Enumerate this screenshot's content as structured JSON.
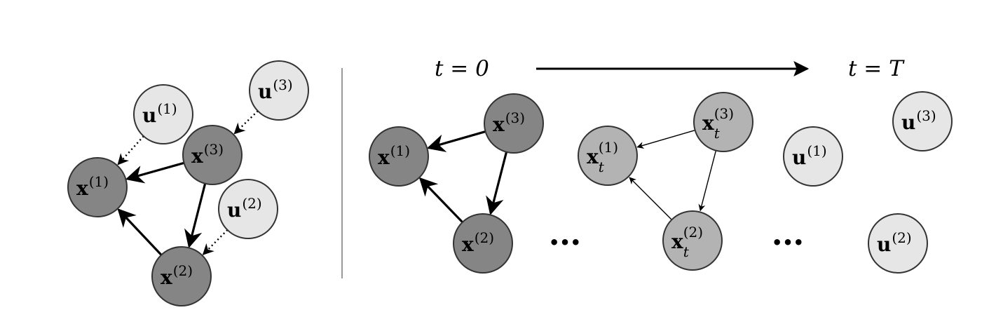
{
  "colors": {
    "background": "#ffffff",
    "observed_fill": "#858585",
    "latent_fill": "#b3b3b3",
    "input_fill": "#e6e6e6",
    "stroke": "#333333",
    "edge": "#000000",
    "divider": "#999999"
  },
  "header": {
    "text": ""
  },
  "left_panel": {
    "nodes": [
      {
        "id": "u1",
        "role": "input",
        "base": "u",
        "sup": "(1)",
        "sub": ""
      },
      {
        "id": "u3",
        "role": "input",
        "base": "u",
        "sup": "(3)",
        "sub": ""
      },
      {
        "id": "u2",
        "role": "input",
        "base": "u",
        "sup": "(2)",
        "sub": ""
      },
      {
        "id": "x1",
        "role": "observed",
        "base": "x",
        "sup": "(1)",
        "sub": ""
      },
      {
        "id": "x3",
        "role": "observed",
        "base": "x",
        "sup": "(3)",
        "sub": ""
      },
      {
        "id": "x2",
        "role": "observed",
        "base": "x",
        "sup": "(2)",
        "sub": ""
      }
    ],
    "edges": [
      {
        "from": "x3",
        "to": "x1",
        "style": "solid"
      },
      {
        "from": "x3",
        "to": "x2",
        "style": "solid"
      },
      {
        "from": "x2",
        "to": "x1",
        "style": "solid"
      },
      {
        "from": "u1",
        "to": "x1",
        "style": "dotted"
      },
      {
        "from": "u3",
        "to": "x3",
        "style": "dotted"
      },
      {
        "from": "u2",
        "to": "x2",
        "style": "dotted"
      }
    ]
  },
  "right_panel": {
    "time_start_label": "t = 0",
    "time_end_label": "t = T",
    "ellipsis_left": "•••",
    "ellipsis_right": "•••",
    "stages": [
      {
        "name": "start",
        "nodes": [
          {
            "id": "a3",
            "role": "observed",
            "base": "x",
            "sup": "(3)",
            "sub": ""
          },
          {
            "id": "a1",
            "role": "observed",
            "base": "x",
            "sup": "(1)",
            "sub": ""
          },
          {
            "id": "a2",
            "role": "observed",
            "base": "x",
            "sup": "(2)",
            "sub": ""
          }
        ],
        "edges": [
          {
            "from": "a3",
            "to": "a1",
            "style": "solid"
          },
          {
            "from": "a3",
            "to": "a2",
            "style": "solid"
          },
          {
            "from": "a2",
            "to": "a1",
            "style": "solid"
          }
        ]
      },
      {
        "name": "middle",
        "nodes": [
          {
            "id": "b3",
            "role": "latent",
            "base": "x",
            "sup": "(3)",
            "sub": "t"
          },
          {
            "id": "b1",
            "role": "latent",
            "base": "x",
            "sup": "(1)",
            "sub": "t"
          },
          {
            "id": "b2",
            "role": "latent",
            "base": "x",
            "sup": "(2)",
            "sub": "t"
          }
        ],
        "edges": [
          {
            "from": "b3",
            "to": "b1",
            "style": "thin"
          },
          {
            "from": "b3",
            "to": "b2",
            "style": "thin"
          },
          {
            "from": "b2",
            "to": "b1",
            "style": "thin"
          }
        ]
      },
      {
        "name": "end",
        "nodes": [
          {
            "id": "c3",
            "role": "input",
            "base": "u",
            "sup": "(3)",
            "sub": ""
          },
          {
            "id": "c1",
            "role": "input",
            "base": "u",
            "sup": "(1)",
            "sub": ""
          },
          {
            "id": "c2",
            "role": "input",
            "base": "u",
            "sup": "(2)",
            "sub": ""
          }
        ],
        "edges": []
      }
    ]
  }
}
